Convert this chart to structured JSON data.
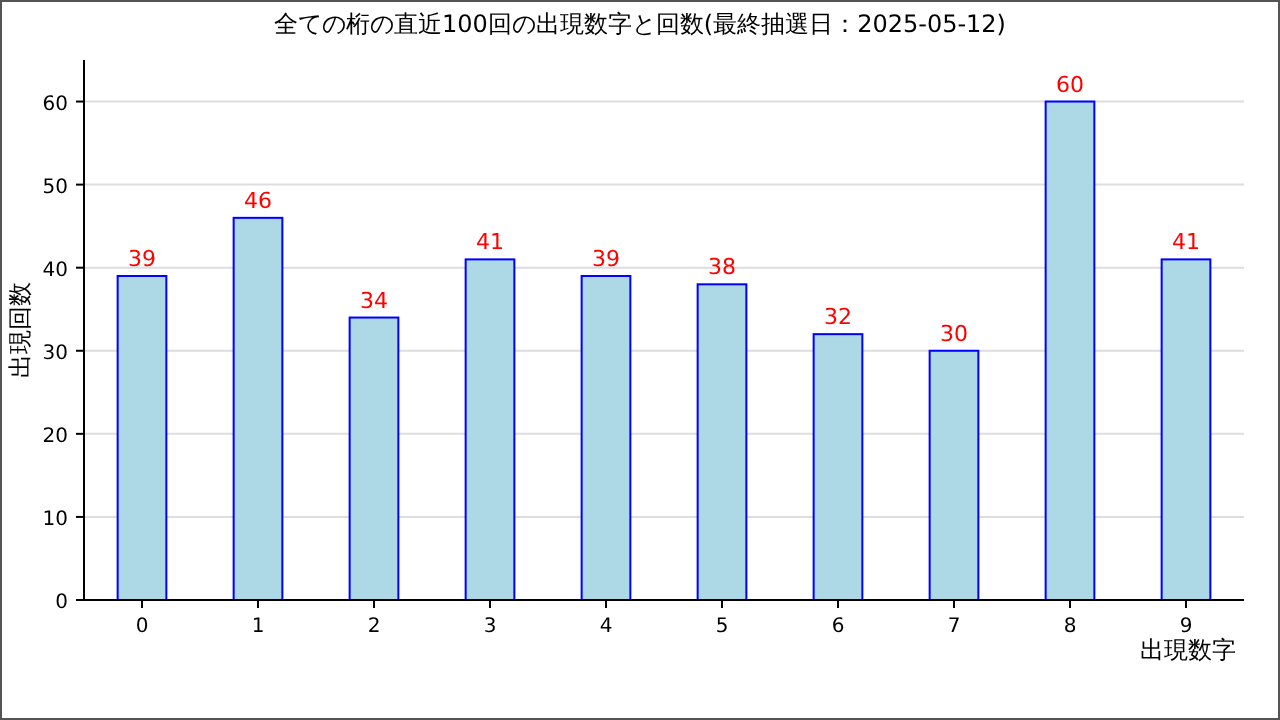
{
  "chart_data": {
    "type": "bar",
    "title": "全ての桁の直近100回の出現数字と回数(最終抽選日：2025-05-12)",
    "xlabel": "出現数字",
    "ylabel": "出現回数",
    "categories": [
      "0",
      "1",
      "2",
      "3",
      "4",
      "5",
      "6",
      "7",
      "8",
      "9"
    ],
    "values": [
      39,
      46,
      34,
      41,
      39,
      38,
      32,
      30,
      60,
      41
    ],
    "color": "#add8e6",
    "ylim": [
      0,
      65
    ],
    "yticks": [
      0,
      10,
      20,
      30,
      40,
      50,
      60
    ],
    "grid": "y",
    "data_labels": true
  }
}
